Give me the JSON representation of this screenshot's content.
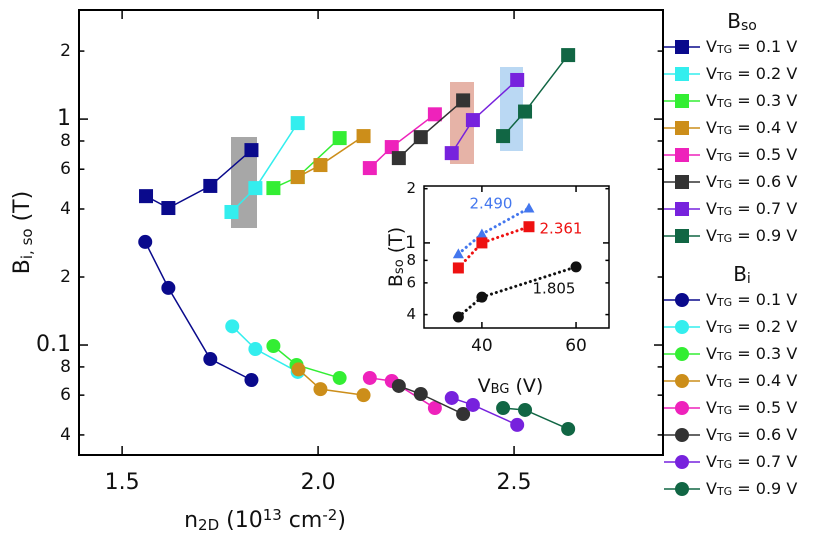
{
  "chart_data": [
    {
      "type": "line",
      "log_y": true,
      "x_label": [
        "n",
        "2D",
        " (10",
        "13",
        " cm",
        "-2",
        ")"
      ],
      "y_label": [
        "B",
        "i, so",
        " (T)"
      ],
      "xlim": [
        1.39,
        2.88
      ],
      "ylim": [
        0.0326,
        3.04
      ],
      "xticks": [
        1.5,
        {
          "value": 2,
          "label": "2.0"
        },
        2.5
      ],
      "yticks": [
        {
          "value": 0.04,
          "label": "4"
        },
        {
          "value": 0.06,
          "label": "6"
        },
        {
          "value": 0.08,
          "label": "8"
        },
        0.1,
        {
          "value": 0.2,
          "label": "2"
        },
        {
          "value": 0.4,
          "label": "4"
        },
        {
          "value": 0.6,
          "label": "6"
        },
        {
          "value": 0.8,
          "label": "8"
        },
        1,
        {
          "value": 2,
          "label": "2"
        }
      ],
      "groups": [
        {
          "title": [
            "B",
            "so"
          ],
          "marker": "square",
          "series": [
            {
              "name": [
                "V",
                "TG",
                " = 0.1 V"
              ],
              "color": "#0a0a8c",
              "x": [
                1.561,
                1.618,
                1.725,
                1.83
              ],
              "values": [
                0.456,
                0.404,
                0.506,
                0.729
              ]
            },
            {
              "name": [
                "V",
                "TG",
                " = 0.2 V"
              ],
              "color": "#33eeee",
              "x": [
                1.779,
                1.84,
                1.948
              ],
              "values": [
                0.388,
                0.495,
                0.96
              ]
            },
            {
              "name": [
                "V",
                "TG",
                " = 0.3 V"
              ],
              "color": "#33ee33",
              "x": [
                1.886,
                1.948,
                2.055
              ],
              "values": [
                0.495,
                0.554,
                0.824
              ]
            },
            {
              "name": [
                "V",
                "TG",
                " = 0.4 V"
              ],
              "color": "#cc8e1a",
              "x": [
                1.948,
                2.006,
                2.116
              ],
              "values": [
                0.554,
                0.626,
                0.841
              ]
            },
            {
              "name": [
                "V",
                "TG",
                " = 0.5 V"
              ],
              "color": "#ee22bb",
              "x": [
                2.132,
                2.188,
                2.298
              ],
              "values": [
                0.607,
                0.752,
                1.05
              ]
            },
            {
              "name": [
                "V",
                "TG",
                " = 0.6 V"
              ],
              "color": "#333333",
              "x": [
                2.206,
                2.262,
                2.37
              ],
              "values": [
                0.672,
                0.832,
                1.21
              ]
            },
            {
              "name": [
                "V",
                "TG",
                " = 0.7 V"
              ],
              "color": "#7722dd",
              "x": [
                2.341,
                2.395,
                2.508
              ],
              "values": [
                0.707,
                0.99,
                1.49
              ]
            },
            {
              "name": [
                "V",
                "TG",
                " = 0.9 V"
              ],
              "color": "#116644",
              "x": [
                2.472,
                2.528,
                2.638
              ],
              "values": [
                0.841,
                1.08,
                1.92
              ]
            }
          ]
        },
        {
          "title": [
            "B",
            "i"
          ],
          "marker": "circle",
          "series": [
            {
              "name": [
                "V",
                "TG",
                " = 0.1 V"
              ],
              "color": "#0a0a8c",
              "x": [
                1.559,
                1.618,
                1.725,
                1.83
              ],
              "values": [
                0.286,
                0.179,
                0.0867,
                0.07
              ]
            },
            {
              "name": [
                "V",
                "TG",
                " = 0.2 V"
              ],
              "color": "#33eeee",
              "x": [
                1.781,
                1.84,
                1.948
              ],
              "values": [
                0.121,
                0.096,
                0.076
              ]
            },
            {
              "name": [
                "V",
                "TG",
                " = 0.3 V"
              ],
              "color": "#33ee33",
              "x": [
                1.886,
                1.945,
                2.055
              ],
              "values": [
                0.099,
                0.0816,
                0.0715
              ]
            },
            {
              "name": [
                "V",
                "TG",
                " = 0.4 V"
              ],
              "color": "#cc8e1a",
              "x": [
                1.95,
                2.006,
                2.116
              ],
              "values": [
                0.078,
                0.0638,
                0.06
              ]
            },
            {
              "name": [
                "V",
                "TG",
                " = 0.5 V"
              ],
              "color": "#ee22bb",
              "x": [
                2.132,
                2.188,
                2.298
              ],
              "values": [
                0.0715,
                0.0693,
                0.0526
              ]
            },
            {
              "name": [
                "V",
                "TG",
                " = 0.6 V"
              ],
              "color": "#333333",
              "x": [
                2.206,
                2.262,
                2.37
              ],
              "values": [
                0.0659,
                0.0607,
                0.0495
              ]
            },
            {
              "name": [
                "V",
                "TG",
                " = 0.7 V"
              ],
              "color": "#7722dd",
              "x": [
                2.341,
                2.395,
                2.508
              ],
              "values": [
                0.0583,
                0.0543,
                0.0443
              ]
            },
            {
              "name": [
                "V",
                "TG",
                " = 0.9 V"
              ],
              "color": "#116644",
              "x": [
                2.472,
                2.528,
                2.638
              ],
              "values": [
                0.0526,
                0.0516,
                0.0425
              ]
            }
          ]
        }
      ]
    },
    {
      "type": "line",
      "log_y": true,
      "line_style": "dotted",
      "x_label": [
        "V",
        "BG",
        " (V)"
      ],
      "y_label": [
        "B",
        "so",
        " (T)"
      ],
      "xlim": [
        27.7,
        67
      ],
      "ylim": [
        0.337,
        2.07
      ],
      "xticks": [
        40,
        60
      ],
      "yticks": [
        {
          "value": 0.4,
          "label": "4"
        },
        {
          "value": 0.6,
          "label": "6"
        },
        {
          "value": 0.8,
          "label": "8"
        },
        1,
        {
          "value": 2,
          "label": "2"
        }
      ],
      "series": [
        {
          "color": "#4477ee",
          "marker": "triangle",
          "label": "2.490",
          "x": [
            35,
            40,
            50
          ],
          "values": [
            0.869,
            1.12,
            1.56
          ]
        },
        {
          "color": "#ee1111",
          "marker": "square",
          "label": "2.361",
          "x": [
            35,
            40,
            50
          ],
          "values": [
            0.726,
            1.0,
            1.23
          ]
        },
        {
          "color": "#111111",
          "marker": "circle",
          "label": "1.805",
          "x": [
            35,
            40,
            60
          ],
          "values": [
            0.388,
            0.5,
            0.736
          ]
        }
      ]
    }
  ]
}
